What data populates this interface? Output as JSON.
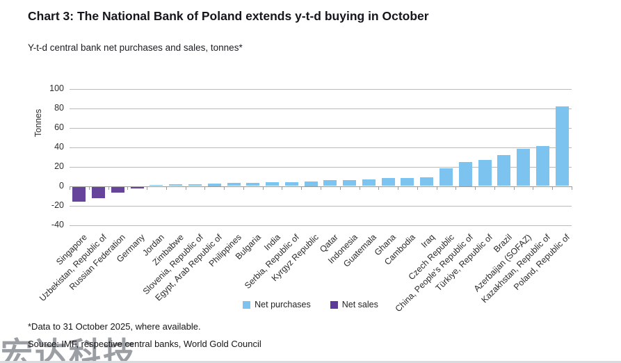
{
  "header": {
    "title": "Chart 3: The National Bank of Poland extends y-t-d buying in October",
    "subtitle": "Y-t-d central bank net purchases and sales, tonnes*"
  },
  "chart_data": {
    "type": "bar",
    "title": "Chart 3: The National Bank of Poland extends y-t-d buying in October",
    "subtitle": "Y-t-d central bank net purchases and sales, tonnes*",
    "ylabel": "Tonnes",
    "xlabel": "",
    "ylim": [
      -40,
      100
    ],
    "ytick_step": 20,
    "grid": true,
    "legend_position": "bottom",
    "categories": [
      "Singapore",
      "Uzbekistan, Republic of",
      "Russian Federation",
      "Germany",
      "Jordan",
      "Zimbabwe",
      "Slovenia, Republic of",
      "Egypt, Arab Republic of",
      "Philippines",
      "Bulgaria",
      "India",
      "Serbia, Republic of",
      "Kyrgyz Republic",
      "Qatar",
      "Indonesia",
      "Guatemala",
      "Ghana",
      "Cambodia",
      "Iraq",
      "Czech Republic",
      "China, People's Republic of",
      "Türkiye, Republic of",
      "Brazil",
      "Azerbaijan (SOFAZ)",
      "Kazakhstan, Republic of",
      "Poland, Republic of"
    ],
    "values": [
      -15,
      -12,
      -6,
      -2,
      1,
      1.5,
      2,
      2.5,
      3,
      3,
      4,
      4,
      5,
      6,
      6,
      6.5,
      8,
      8.5,
      9,
      18,
      25,
      27,
      32,
      38,
      41,
      82
    ],
    "colors": {
      "net_purchases": "#7DC3F0",
      "net_sales": "#66449C"
    },
    "legend": [
      {
        "label": "Net purchases",
        "color": "#7DC3F0"
      },
      {
        "label": "Net sales",
        "color": "#5E3A99"
      }
    ]
  },
  "footer": {
    "footnote": "*Data to 31 October 2025, where available.",
    "source": "Source: IMF, respective central banks, World Gold Council"
  },
  "watermark": {
    "text": "宏达科技"
  }
}
